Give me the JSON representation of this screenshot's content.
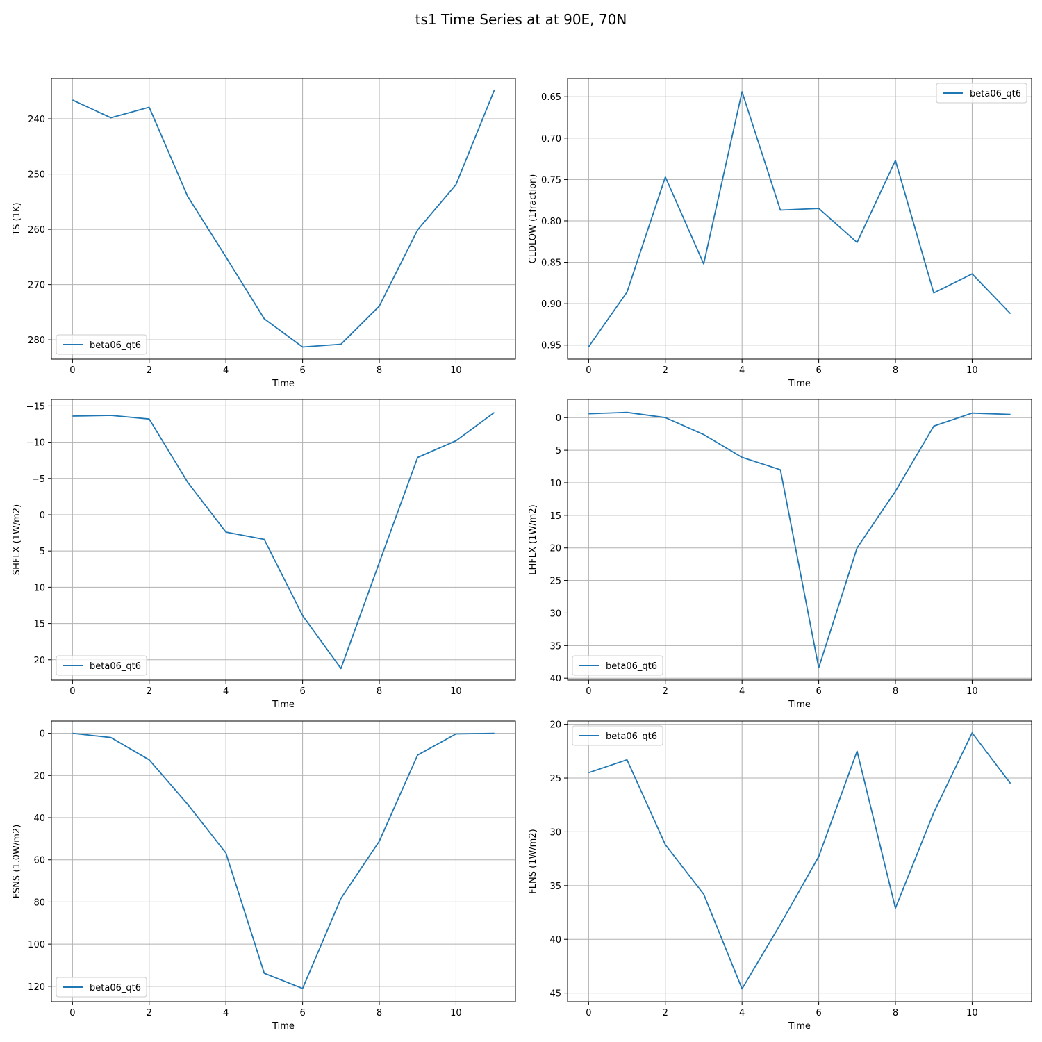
{
  "title": "ts1 Time Series at at 90E, 70N",
  "colors": {
    "line": "#1f77b4",
    "grid": "#b0b0b0",
    "axis": "#000000"
  },
  "chart_data": [
    {
      "type": "line",
      "xlabel": "Time",
      "ylabel": "TS (1K)",
      "y_inverted": true,
      "ylim": [
        283.5,
        232.7
      ],
      "xlim": [
        -0.55,
        11.55
      ],
      "xticks": [
        0,
        2,
        4,
        6,
        8,
        10
      ],
      "yticks": [
        240,
        250,
        260,
        270,
        280
      ],
      "grid": true,
      "legend": "lower left",
      "series": [
        {
          "name": "beta06_qt6",
          "x": [
            0,
            1,
            2,
            3,
            4,
            5,
            6,
            7,
            8,
            9,
            10,
            11
          ],
          "y": [
            236.6,
            239.8,
            237.9,
            254.0,
            265.0,
            276.2,
            281.3,
            280.8,
            273.9,
            260.1,
            251.9,
            234.8
          ]
        }
      ]
    },
    {
      "type": "line",
      "xlabel": "Time",
      "ylabel": "CLDLOW (1fraction)",
      "y_inverted": true,
      "ylim": [
        0.967,
        0.628
      ],
      "xlim": [
        -0.55,
        11.55
      ],
      "xticks": [
        0,
        2,
        4,
        6,
        8,
        10
      ],
      "yticks": [
        0.65,
        0.7,
        0.75,
        0.8,
        0.85,
        0.9,
        0.95
      ],
      "grid": true,
      "legend": "upper right",
      "series": [
        {
          "name": "beta06_qt6",
          "x": [
            0,
            1,
            2,
            3,
            4,
            5,
            6,
            7,
            8,
            9,
            10,
            11
          ],
          "y": [
            0.952,
            0.886,
            0.747,
            0.852,
            0.644,
            0.787,
            0.785,
            0.826,
            0.727,
            0.887,
            0.864,
            0.912
          ]
        }
      ]
    },
    {
      "type": "line",
      "xlabel": "Time",
      "ylabel": "SHFLX (1W/m2)",
      "y_inverted": true,
      "ylim": [
        22.8,
        -15.9
      ],
      "xlim": [
        -0.55,
        11.55
      ],
      "xticks": [
        0,
        2,
        4,
        6,
        8,
        10
      ],
      "yticks": [
        -15,
        -10,
        -5,
        0,
        5,
        10,
        15,
        20
      ],
      "grid": true,
      "legend": "lower left",
      "series": [
        {
          "name": "beta06_qt6",
          "x": [
            0,
            1,
            2,
            3,
            4,
            5,
            6,
            7,
            8,
            9,
            10,
            11
          ],
          "y": [
            -13.6,
            -13.7,
            -13.2,
            -4.5,
            2.4,
            3.4,
            13.9,
            21.2,
            6.6,
            -7.9,
            -10.2,
            -14.1
          ]
        }
      ]
    },
    {
      "type": "line",
      "xlabel": "Time",
      "ylabel": "LHFLX (1W/m2)",
      "y_inverted": true,
      "ylim": [
        40.3,
        -2.8
      ],
      "xlim": [
        -0.55,
        11.55
      ],
      "xticks": [
        0,
        2,
        4,
        6,
        8,
        10
      ],
      "yticks": [
        0,
        5,
        10,
        15,
        20,
        25,
        30,
        35,
        40
      ],
      "grid": true,
      "legend": "lower left",
      "series": [
        {
          "name": "beta06_qt6",
          "x": [
            0,
            1,
            2,
            3,
            4,
            5,
            6,
            7,
            8,
            9,
            10,
            11
          ],
          "y": [
            -0.6,
            -0.8,
            0.0,
            2.6,
            6.1,
            8.0,
            38.4,
            20.0,
            11.3,
            1.3,
            -0.7,
            -0.5
          ]
        }
      ]
    },
    {
      "type": "line",
      "xlabel": "Time",
      "ylabel": "FSNS (1.0W/m2)",
      "y_inverted": true,
      "ylim": [
        127.3,
        -5.8
      ],
      "xlim": [
        -0.55,
        11.55
      ],
      "xticks": [
        0,
        2,
        4,
        6,
        8,
        10
      ],
      "yticks": [
        0,
        20,
        40,
        60,
        80,
        100,
        120
      ],
      "grid": true,
      "legend": "lower left",
      "series": [
        {
          "name": "beta06_qt6",
          "x": [
            0,
            1,
            2,
            3,
            4,
            5,
            6,
            7,
            8,
            9,
            10,
            11
          ],
          "y": [
            0.0,
            2.0,
            12.6,
            33.6,
            56.8,
            113.8,
            121.0,
            78.3,
            51.2,
            10.3,
            0.3,
            0.0
          ]
        }
      ]
    },
    {
      "type": "line",
      "xlabel": "Time",
      "ylabel": "FLNS (1W/m2)",
      "y_inverted": true,
      "ylim": [
        45.8,
        19.7
      ],
      "xlim": [
        -0.55,
        11.55
      ],
      "xticks": [
        0,
        2,
        4,
        6,
        8,
        10
      ],
      "yticks": [
        20,
        25,
        30,
        35,
        40,
        45
      ],
      "grid": true,
      "legend": "upper left",
      "series": [
        {
          "name": "beta06_qt6",
          "x": [
            0,
            1,
            2,
            3,
            4,
            5,
            6,
            7,
            8,
            9,
            10,
            11
          ],
          "y": [
            24.5,
            23.3,
            31.2,
            35.8,
            44.6,
            38.6,
            32.3,
            22.5,
            37.1,
            28.2,
            20.8,
            25.5
          ]
        }
      ]
    }
  ]
}
